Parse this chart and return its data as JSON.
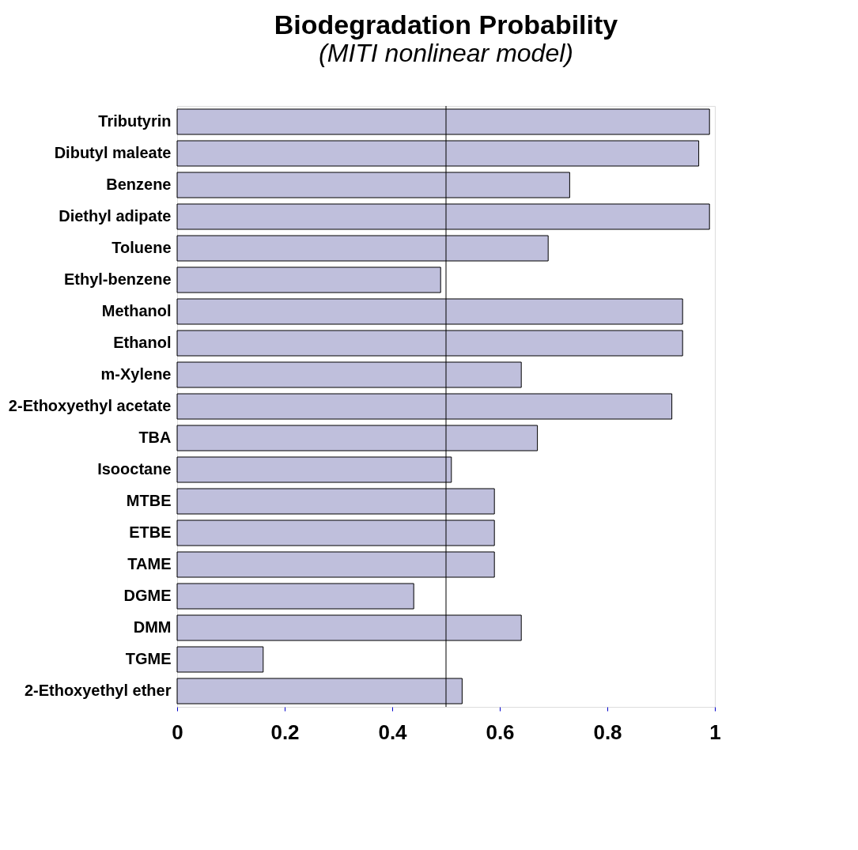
{
  "chart_data": {
    "type": "bar",
    "orientation": "horizontal",
    "title": "Biodegradation Probability",
    "subtitle": "(MITI nonlinear model)",
    "categories": [
      "Tributyrin",
      "Dibutyl maleate",
      "Benzene",
      "Diethyl adipate",
      "Toluene",
      "Ethyl-benzene",
      "Methanol",
      "Ethanol",
      "m-Xylene",
      "2-Ethoxyethyl acetate",
      "TBA",
      "Isooctane",
      "MTBE ",
      "ETBE",
      "TAME",
      "DGME",
      "DMM ",
      "TGME",
      "2-Ethoxyethyl ether"
    ],
    "values": [
      0.99,
      0.97,
      0.73,
      0.99,
      0.69,
      0.49,
      0.94,
      0.94,
      0.64,
      0.92,
      0.67,
      0.51,
      0.59,
      0.59,
      0.59,
      0.44,
      0.64,
      0.16,
      0.53
    ],
    "color": "#2a2a8a",
    "xlim": [
      0,
      1
    ],
    "xticks": [
      0,
      0.2,
      0.4,
      0.6,
      0.8,
      1
    ],
    "ref_lines": [
      {
        "axis": "x",
        "value": 0.5,
        "label": null,
        "color": "#000000"
      }
    ],
    "grid": false
  }
}
